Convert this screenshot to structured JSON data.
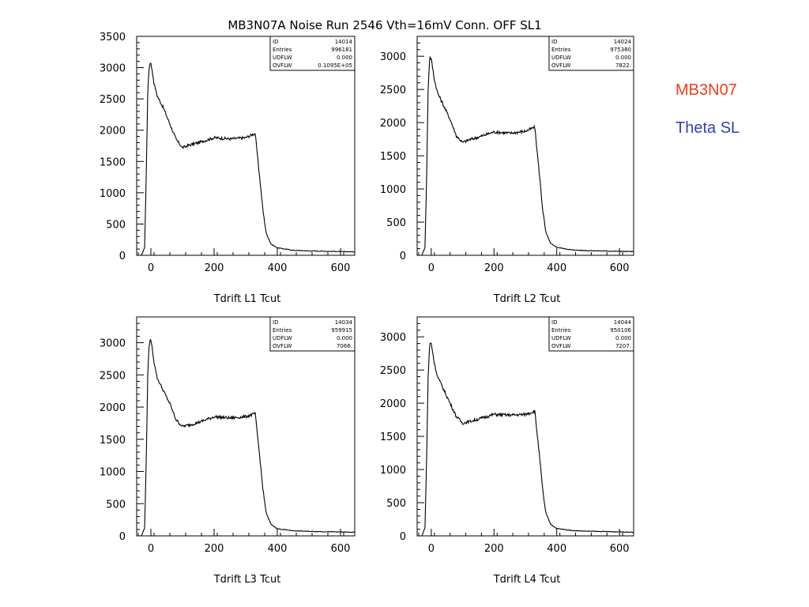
{
  "title": "MB3N07A Noise Run 2546 Vth=16mV Conn. OFF SL1",
  "side_labels": [
    {
      "text": "MB3N07",
      "color": "#e8401c"
    },
    {
      "text": "Theta SL",
      "color": "#3a3ab8"
    }
  ],
  "colors": {
    "line": "#000000",
    "frame": "#000000",
    "background": "#ffffff"
  },
  "chart_data": [
    {
      "type": "line",
      "title": "",
      "xlabel": "Tdrift L1 Tcut",
      "ylabel": "",
      "xlim": [
        -45,
        645
      ],
      "ylim": [
        0,
        3500
      ],
      "xticks": [
        0,
        200,
        400,
        600
      ],
      "yticks": [
        0,
        500,
        1000,
        1500,
        2000,
        2500,
        3000,
        3500
      ],
      "stats": [
        {
          "label": "ID",
          "value": "14014"
        },
        {
          "label": "Entries",
          "value": "996181"
        },
        {
          "label": "UDFLW",
          "value": "0.000"
        },
        {
          "label": "OVFLW",
          "value": "0.1095E+05"
        }
      ],
      "series": [
        {
          "x": [
            -30,
            -20,
            -15,
            -10,
            -5,
            0,
            10,
            20,
            40,
            60,
            80,
            100,
            120,
            150,
            200,
            250,
            300,
            330,
            345,
            355,
            365,
            380,
            400,
            450,
            500,
            550,
            600,
            645
          ],
          "y": [
            0,
            120,
            1200,
            2600,
            3050,
            3080,
            2750,
            2550,
            2350,
            2100,
            1850,
            1720,
            1760,
            1800,
            1880,
            1860,
            1880,
            1950,
            1200,
            700,
            350,
            180,
            120,
            80,
            70,
            65,
            60,
            55
          ]
        }
      ]
    },
    {
      "type": "line",
      "title": "",
      "xlabel": "Tdrift L2 Tcut",
      "ylabel": "",
      "xlim": [
        -45,
        645
      ],
      "ylim": [
        0,
        3300
      ],
      "xticks": [
        0,
        200,
        400,
        600
      ],
      "yticks": [
        0,
        500,
        1000,
        1500,
        2000,
        2500,
        3000
      ],
      "stats": [
        {
          "label": "ID",
          "value": "14024"
        },
        {
          "label": "Entries",
          "value": "975380"
        },
        {
          "label": "UDFLW",
          "value": "0.000"
        },
        {
          "label": "OVFLW",
          "value": "7822."
        }
      ],
      "series": [
        {
          "x": [
            -30,
            -20,
            -15,
            -10,
            -5,
            0,
            10,
            20,
            40,
            60,
            80,
            100,
            120,
            150,
            200,
            250,
            300,
            330,
            345,
            355,
            365,
            380,
            400,
            450,
            500,
            550,
            600,
            645
          ],
          "y": [
            0,
            120,
            1100,
            2500,
            3000,
            2950,
            2650,
            2450,
            2250,
            2050,
            1800,
            1700,
            1740,
            1780,
            1860,
            1840,
            1870,
            1930,
            1200,
            700,
            350,
            180,
            120,
            80,
            70,
            65,
            60,
            55
          ]
        }
      ]
    },
    {
      "type": "line",
      "title": "",
      "xlabel": "Tdrift L3 Tcut",
      "ylabel": "",
      "xlim": [
        -45,
        645
      ],
      "ylim": [
        0,
        3400
      ],
      "xticks": [
        0,
        200,
        400,
        600
      ],
      "yticks": [
        0,
        500,
        1000,
        1500,
        2000,
        2500,
        3000
      ],
      "stats": [
        {
          "label": "ID",
          "value": "14034"
        },
        {
          "label": "Entries",
          "value": "959915"
        },
        {
          "label": "UDFLW",
          "value": "0.000"
        },
        {
          "label": "OVFLW",
          "value": "7066."
        }
      ],
      "series": [
        {
          "x": [
            -30,
            -20,
            -15,
            -10,
            -5,
            0,
            10,
            20,
            40,
            60,
            80,
            100,
            120,
            150,
            200,
            250,
            300,
            330,
            345,
            355,
            365,
            380,
            400,
            450,
            500,
            550,
            600,
            645
          ],
          "y": [
            0,
            120,
            1100,
            2500,
            3000,
            3050,
            2700,
            2450,
            2250,
            2050,
            1800,
            1700,
            1720,
            1760,
            1850,
            1830,
            1850,
            1900,
            1200,
            700,
            350,
            180,
            110,
            80,
            70,
            65,
            60,
            55
          ]
        }
      ]
    },
    {
      "type": "line",
      "title": "",
      "xlabel": "Tdrift L4 Tcut",
      "ylabel": "",
      "xlim": [
        -45,
        645
      ],
      "ylim": [
        0,
        3300
      ],
      "xticks": [
        0,
        200,
        400,
        600
      ],
      "yticks": [
        0,
        500,
        1000,
        1500,
        2000,
        2500,
        3000
      ],
      "stats": [
        {
          "label": "ID",
          "value": "14044"
        },
        {
          "label": "Entries",
          "value": "950106"
        },
        {
          "label": "UDFLW",
          "value": "0.000"
        },
        {
          "label": "OVFLW",
          "value": "7207."
        }
      ],
      "series": [
        {
          "x": [
            -30,
            -20,
            -15,
            -10,
            -5,
            0,
            10,
            20,
            40,
            60,
            80,
            100,
            120,
            150,
            200,
            250,
            300,
            330,
            345,
            355,
            365,
            380,
            400,
            450,
            500,
            550,
            600,
            645
          ],
          "y": [
            0,
            120,
            1100,
            2400,
            2900,
            2900,
            2600,
            2400,
            2200,
            2000,
            1800,
            1700,
            1720,
            1760,
            1830,
            1820,
            1830,
            1880,
            1200,
            700,
            350,
            180,
            110,
            80,
            70,
            65,
            60,
            55
          ]
        }
      ]
    }
  ]
}
